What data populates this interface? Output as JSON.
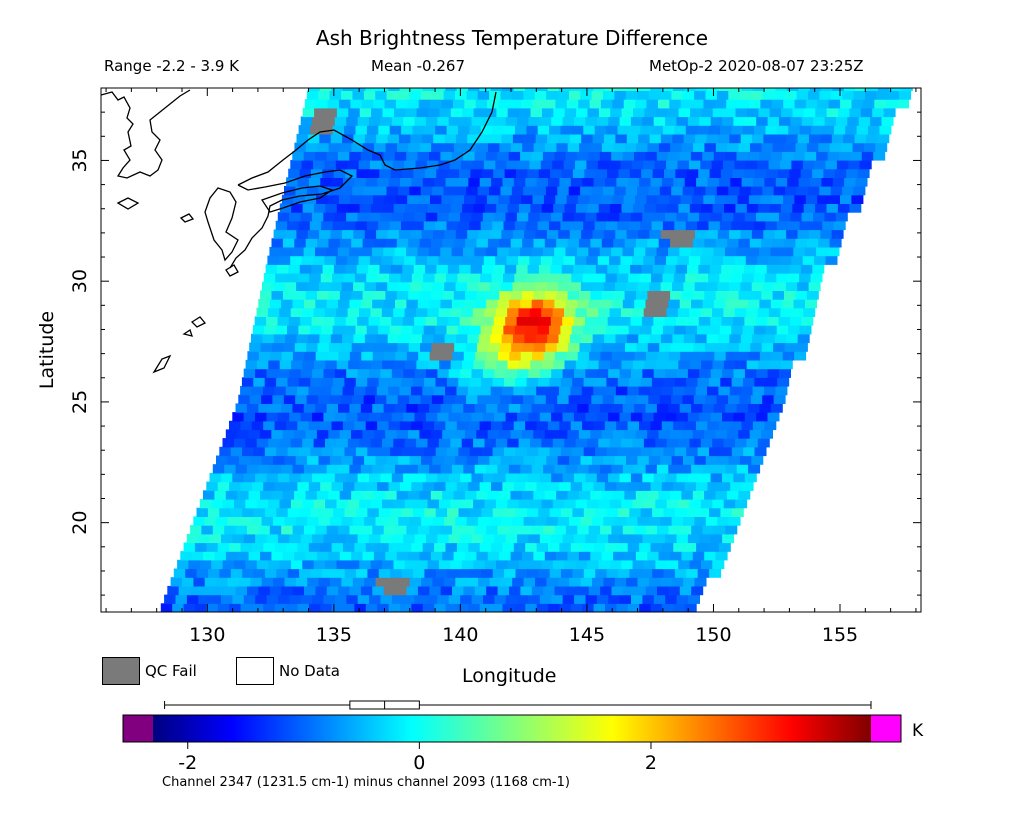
{
  "header": {
    "title": "Ash Brightness Temperature Difference",
    "range_text": "Range -2.2 - 3.9 K",
    "mean_text": "Mean -0.267",
    "satellite_text": "MetOp-2 2020-08-07 23:25Z"
  },
  "legend": {
    "qc_fail_label": "QC Fail",
    "no_data_label": "No Data",
    "qc_fail_color": "#7a7a7a",
    "no_data_color": "#ffffff"
  },
  "colorbar": {
    "unit": "K",
    "range": [
      -2.5,
      4.0
    ],
    "ticks": [
      "-2",
      "0",
      "2"
    ],
    "tick_values": [
      -2,
      0,
      2
    ],
    "under_color": "#800080",
    "over_color": "#ff00ff",
    "boxplot": {
      "min": -2.2,
      "q1": -0.6,
      "median": -0.3,
      "q3": 0.0,
      "max": 3.9
    }
  },
  "footnote": "Channel 2347 (1231.5 cm-1) minus channel 2093 (1168 cm-1)",
  "chart_data": {
    "type": "heatmap",
    "title": "Ash Brightness Temperature Difference",
    "xlabel": "Longitude",
    "ylabel": "Latitude",
    "xlim": [
      125.8,
      158.2
    ],
    "ylim": [
      16.3,
      38.0
    ],
    "x_ticks": [
      "130",
      "135",
      "140",
      "145",
      "150",
      "155"
    ],
    "x_tick_values": [
      130,
      135,
      140,
      145,
      150,
      155
    ],
    "y_ticks": [
      "20",
      "25",
      "30",
      "35"
    ],
    "y_tick_values": [
      20,
      25,
      30,
      35
    ],
    "value_range": [
      -2.2,
      3.9
    ],
    "mean": -0.267,
    "swath_edges": {
      "west": [
        [
          128.1,
          16.3
        ],
        [
          131.2,
          25.0
        ],
        [
          132.4,
          31.0
        ],
        [
          134.0,
          38.0
        ]
      ],
      "east": [
        [
          149.2,
          16.3
        ],
        [
          152.6,
          25.0
        ],
        [
          154.5,
          31.0
        ],
        [
          157.6,
          38.0
        ]
      ]
    },
    "features": [
      {
        "name": "hotspot",
        "lon": 142.7,
        "lat": 27.8,
        "value": 3.9
      },
      {
        "name": "elevated-region",
        "lon": 143.2,
        "lat": 28.6,
        "value": 2.0
      },
      {
        "name": "elevated-band",
        "lon": 141.5,
        "lat": 26.5,
        "value": 1.0
      }
    ],
    "qc_fail_patches": [
      {
        "lon": 147.8,
        "lat": 29.1
      },
      {
        "lon": 148.6,
        "lat": 31.8
      },
      {
        "lon": 134.6,
        "lat": 36.6
      },
      {
        "lon": 139.3,
        "lat": 27.2
      },
      {
        "lon": 137.3,
        "lat": 17.4
      }
    ],
    "grid": false,
    "colormap": "jet"
  }
}
